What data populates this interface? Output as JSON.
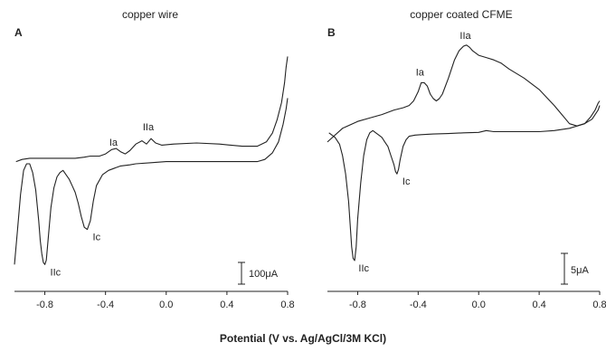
{
  "xlabel": "Potential (V vs. Ag/AgCl/3M KCl)",
  "chart_data": [
    {
      "type": "line",
      "panel": "A",
      "title": "copper wire",
      "xlim": [
        -1.0,
        0.8
      ],
      "xticks": [
        -0.8,
        -0.4,
        0.0,
        0.4,
        0.8
      ],
      "xtick_labels": [
        "-0.8",
        "-0.4",
        "0.0",
        "0.4",
        "0.8"
      ],
      "scale_bar": {
        "label": "100μA",
        "value": 100
      },
      "yrange_units": [
        0,
        100
      ],
      "peaks": [
        {
          "label": "Ia",
          "x": -0.33,
          "y": 55
        },
        {
          "label": "IIa",
          "x": -0.1,
          "y": 62
        },
        {
          "label": "Ic",
          "x": -0.52,
          "y": 20
        },
        {
          "label": "IIc",
          "x": -0.8,
          "y": 4
        }
      ],
      "series": [
        {
          "x": [
            -1.0,
            -0.99,
            -0.98,
            -0.96,
            -0.94,
            -0.92,
            -0.9,
            -0.88,
            -0.86,
            -0.84,
            -0.83,
            -0.82,
            -0.81,
            -0.8,
            -0.79,
            -0.78,
            -0.76,
            -0.74,
            -0.72,
            -0.7,
            -0.68,
            -0.66,
            -0.64,
            -0.62,
            -0.6,
            -0.58,
            -0.56,
            -0.54,
            -0.52,
            -0.5,
            -0.48,
            -0.46,
            -0.42,
            -0.38,
            -0.34,
            -0.3,
            -0.24,
            -0.2,
            -0.1,
            0.0,
            0.1,
            0.2,
            0.3,
            0.4,
            0.5,
            0.6,
            0.65,
            0.7,
            0.74,
            0.77,
            0.79,
            0.8
          ],
          "y": [
            4,
            12,
            20,
            36,
            47,
            50,
            50,
            46,
            38,
            24,
            15,
            9,
            5,
            4,
            6,
            14,
            30,
            39,
            44,
            46,
            47,
            45,
            43,
            40,
            37,
            32,
            26,
            21,
            20,
            24,
            33,
            40,
            45,
            47,
            48,
            49,
            49.5,
            50,
            50.5,
            51,
            51,
            51,
            51,
            51,
            51,
            51,
            52,
            55,
            60,
            68,
            75,
            80
          ]
        },
        {
          "x": [
            -0.99,
            -0.95,
            -0.9,
            -0.8,
            -0.7,
            -0.6,
            -0.54,
            -0.5,
            -0.44,
            -0.4,
            -0.36,
            -0.33,
            -0.3,
            -0.27,
            -0.24,
            -0.2,
            -0.16,
            -0.13,
            -0.1,
            -0.07,
            -0.03,
            0.05,
            0.2,
            0.35,
            0.5,
            0.6,
            0.66,
            0.7,
            0.73,
            0.76,
            0.78,
            0.79,
            0.8
          ],
          "y": [
            51,
            52,
            52.5,
            52.5,
            52.5,
            52.5,
            53,
            53.5,
            53.5,
            54.5,
            56.5,
            57,
            55.5,
            54.5,
            56,
            59,
            60.5,
            59,
            61.5,
            59.5,
            58.5,
            59,
            59.5,
            59,
            58,
            58,
            60,
            64,
            70,
            78,
            87,
            94,
            99
          ]
        }
      ]
    },
    {
      "type": "line",
      "panel": "B",
      "title": "copper coated CFME",
      "xlim": [
        -1.0,
        0.8
      ],
      "xticks": [
        -0.8,
        -0.4,
        0.0,
        0.4,
        0.8
      ],
      "xtick_labels": [
        "-0.8",
        "-0.4",
        "0.0",
        "0.4",
        "0.8"
      ],
      "scale_bar": {
        "label": "5μA",
        "value": 5
      },
      "yrange_units": [
        0,
        100
      ],
      "peaks": [
        {
          "label": "Ia",
          "x": -0.37,
          "y": 82
        },
        {
          "label": "IIa",
          "x": -0.07,
          "y": 98
        },
        {
          "label": "Ic",
          "x": -0.54,
          "y": 42
        },
        {
          "label": "IIc",
          "x": -0.83,
          "y": 4
        }
      ],
      "series": [
        {
          "x": [
            -0.99,
            -0.95,
            -0.92,
            -0.9,
            -0.88,
            -0.86,
            -0.85,
            -0.84,
            -0.83,
            -0.82,
            -0.81,
            -0.8,
            -0.78,
            -0.76,
            -0.74,
            -0.72,
            -0.7,
            -0.68,
            -0.66,
            -0.64,
            -0.62,
            -0.6,
            -0.58,
            -0.56,
            -0.55,
            -0.54,
            -0.53,
            -0.52,
            -0.5,
            -0.48,
            -0.46,
            -0.42,
            -0.38,
            -0.3,
            -0.2,
            -0.1,
            0.0,
            0.05,
            0.1,
            0.2,
            0.3,
            0.4,
            0.5,
            0.6,
            0.7,
            0.75,
            0.79,
            0.8
          ],
          "y": [
            60,
            58,
            55,
            50,
            42,
            30,
            20,
            10,
            5,
            4,
            10,
            22,
            38,
            50,
            57,
            60,
            61,
            60,
            59,
            58,
            56,
            54,
            50,
            46,
            43,
            42,
            44,
            48,
            54,
            57,
            58.5,
            59,
            59.2,
            59.5,
            59.7,
            60,
            60.2,
            61,
            60.5,
            60.5,
            60.5,
            60.5,
            61,
            62,
            64,
            66,
            70,
            72
          ]
        },
        {
          "x": [
            -1.0,
            -0.9,
            -0.8,
            -0.72,
            -0.64,
            -0.56,
            -0.5,
            -0.46,
            -0.43,
            -0.4,
            -0.38,
            -0.36,
            -0.34,
            -0.32,
            -0.3,
            -0.28,
            -0.26,
            -0.24,
            -0.2,
            -0.16,
            -0.13,
            -0.1,
            -0.08,
            -0.06,
            -0.04,
            0.0,
            0.05,
            0.1,
            0.15,
            0.2,
            0.3,
            0.4,
            0.5,
            0.55,
            0.6,
            0.65,
            0.7,
            0.74,
            0.77,
            0.79,
            0.8
          ],
          "y": [
            56,
            62,
            65,
            66.5,
            68,
            70,
            71,
            72,
            74,
            78,
            82,
            82,
            80.5,
            77,
            75,
            74,
            75,
            77,
            84,
            92,
            96,
            98,
            98.5,
            97.5,
            96,
            94,
            93,
            92,
            90.5,
            88,
            84,
            79,
            72,
            68,
            64,
            63,
            64,
            67,
            70,
            73,
            74
          ]
        }
      ]
    }
  ]
}
